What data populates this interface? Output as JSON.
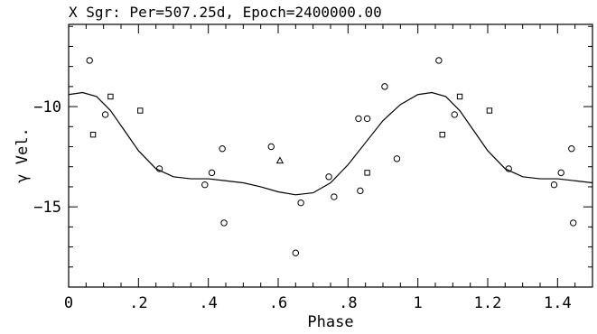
{
  "chart_data": {
    "type": "scatter",
    "title": "X Sgr: Per=507.25d, Epoch=2400000.00",
    "xlabel": "Phase",
    "ylabel": "γ Vel.",
    "xlim": [
      0,
      1.5
    ],
    "ylim": [
      -19,
      -5.9
    ],
    "y_inverted": true,
    "x_ticks": [
      {
        "value": 0,
        "label": "0"
      },
      {
        "value": 0.2,
        "label": ".2"
      },
      {
        "value": 0.4,
        "label": ".4"
      },
      {
        "value": 0.6,
        "label": ".6"
      },
      {
        "value": 0.8,
        "label": ".8"
      },
      {
        "value": 1.0,
        "label": "1"
      },
      {
        "value": 1.2,
        "label": "1.2"
      },
      {
        "value": 1.4,
        "label": "1.4"
      }
    ],
    "y_ticks": [
      {
        "value": -10,
        "label": "−10"
      },
      {
        "value": -15,
        "label": "−15"
      }
    ],
    "grid": false,
    "legend": "none",
    "series": [
      {
        "marker": "circle",
        "points": [
          {
            "x": 0.06,
            "y": -7.7
          },
          {
            "x": 0.105,
            "y": -10.4
          },
          {
            "x": 0.26,
            "y": -13.1
          },
          {
            "x": 0.39,
            "y": -13.9
          },
          {
            "x": 0.41,
            "y": -13.3
          },
          {
            "x": 0.44,
            "y": -12.1
          },
          {
            "x": 0.445,
            "y": -15.8
          },
          {
            "x": 0.58,
            "y": -12.0
          },
          {
            "x": 0.65,
            "y": -17.3
          },
          {
            "x": 0.665,
            "y": -14.8
          },
          {
            "x": 0.745,
            "y": -13.5
          },
          {
            "x": 0.76,
            "y": -14.5
          },
          {
            "x": 0.83,
            "y": -10.6
          },
          {
            "x": 0.835,
            "y": -14.2
          },
          {
            "x": 0.855,
            "y": -10.6
          },
          {
            "x": 0.905,
            "y": -9.0
          },
          {
            "x": 0.94,
            "y": -12.6
          },
          {
            "x": 1.06,
            "y": -7.7
          },
          {
            "x": 1.105,
            "y": -10.4
          },
          {
            "x": 1.26,
            "y": -13.1
          },
          {
            "x": 1.39,
            "y": -13.9
          },
          {
            "x": 1.41,
            "y": -13.3
          },
          {
            "x": 1.44,
            "y": -12.1
          },
          {
            "x": 1.445,
            "y": -15.8
          }
        ]
      },
      {
        "marker": "square",
        "points": [
          {
            "x": 0.07,
            "y": -11.4
          },
          {
            "x": 0.12,
            "y": -9.5
          },
          {
            "x": 0.205,
            "y": -10.2
          },
          {
            "x": 0.855,
            "y": -13.3
          },
          {
            "x": 1.07,
            "y": -11.4
          },
          {
            "x": 1.12,
            "y": -9.5
          },
          {
            "x": 1.205,
            "y": -10.2
          }
        ]
      },
      {
        "marker": "triangle",
        "points": [
          {
            "x": 0.605,
            "y": -12.7
          }
        ]
      },
      {
        "marker": "line",
        "points": [
          {
            "x": 0.0,
            "y": -9.4
          },
          {
            "x": 0.04,
            "y": -9.3
          },
          {
            "x": 0.08,
            "y": -9.5
          },
          {
            "x": 0.12,
            "y": -10.2
          },
          {
            "x": 0.16,
            "y": -11.2
          },
          {
            "x": 0.2,
            "y": -12.2
          },
          {
            "x": 0.25,
            "y": -13.1
          },
          {
            "x": 0.3,
            "y": -13.5
          },
          {
            "x": 0.35,
            "y": -13.6
          },
          {
            "x": 0.4,
            "y": -13.6
          },
          {
            "x": 0.45,
            "y": -13.7
          },
          {
            "x": 0.5,
            "y": -13.8
          },
          {
            "x": 0.55,
            "y": -14.0
          },
          {
            "x": 0.6,
            "y": -14.25
          },
          {
            "x": 0.65,
            "y": -14.4
          },
          {
            "x": 0.7,
            "y": -14.3
          },
          {
            "x": 0.75,
            "y": -13.8
          },
          {
            "x": 0.8,
            "y": -12.9
          },
          {
            "x": 0.85,
            "y": -11.8
          },
          {
            "x": 0.9,
            "y": -10.7
          },
          {
            "x": 0.95,
            "y": -9.9
          },
          {
            "x": 1.0,
            "y": -9.4
          },
          {
            "x": 1.04,
            "y": -9.3
          },
          {
            "x": 1.08,
            "y": -9.5
          },
          {
            "x": 1.12,
            "y": -10.2
          },
          {
            "x": 1.16,
            "y": -11.2
          },
          {
            "x": 1.2,
            "y": -12.2
          },
          {
            "x": 1.25,
            "y": -13.1
          },
          {
            "x": 1.3,
            "y": -13.5
          },
          {
            "x": 1.35,
            "y": -13.6
          },
          {
            "x": 1.4,
            "y": -13.6
          },
          {
            "x": 1.45,
            "y": -13.7
          },
          {
            "x": 1.5,
            "y": -13.8
          }
        ]
      }
    ]
  }
}
